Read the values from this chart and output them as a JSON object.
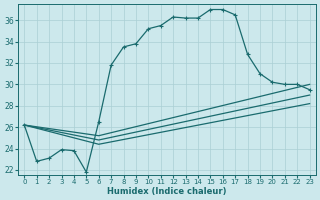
{
  "xlabel": "Humidex (Indice chaleur)",
  "ylabel": "",
  "bg_color": "#cce8ec",
  "grid_color": "#aacfd4",
  "line_color": "#1a6b6e",
  "xlim": [
    -0.5,
    23.5
  ],
  "ylim": [
    21.5,
    37.5
  ],
  "yticks": [
    22,
    24,
    26,
    28,
    30,
    32,
    34,
    36
  ],
  "xticks": [
    0,
    1,
    2,
    3,
    4,
    5,
    6,
    7,
    8,
    9,
    10,
    11,
    12,
    13,
    14,
    15,
    16,
    17,
    18,
    19,
    20,
    21,
    22,
    23
  ],
  "lines": [
    {
      "x": [
        0,
        1,
        2,
        3,
        4,
        5,
        6,
        7,
        8,
        9,
        10,
        11,
        12,
        13,
        14,
        15,
        16,
        17,
        18,
        19,
        20,
        21,
        22,
        23
      ],
      "y": [
        26.2,
        22.8,
        23.1,
        23.9,
        23.8,
        21.8,
        26.5,
        31.8,
        33.5,
        33.8,
        35.2,
        35.5,
        36.3,
        36.2,
        36.2,
        37.0,
        37.0,
        36.5,
        32.8,
        31.0,
        30.2,
        30.0,
        30.0,
        29.5
      ],
      "has_markers": true
    },
    {
      "x": [
        0,
        6,
        23
      ],
      "y": [
        26.2,
        25.2,
        30.0
      ],
      "has_markers": false
    },
    {
      "x": [
        0,
        6,
        23
      ],
      "y": [
        26.2,
        24.8,
        29.0
      ],
      "has_markers": false
    },
    {
      "x": [
        0,
        6,
        23
      ],
      "y": [
        26.2,
        24.4,
        28.2
      ],
      "has_markers": false
    }
  ]
}
